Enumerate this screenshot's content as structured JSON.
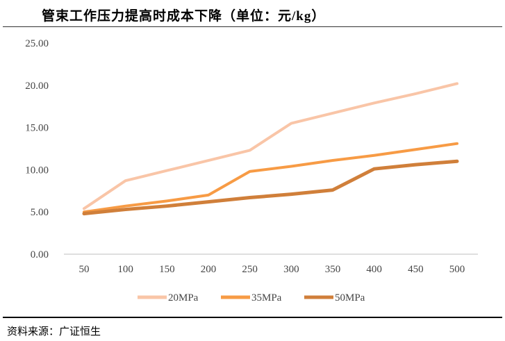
{
  "chart_data": {
    "type": "line",
    "title": "管束工作压力提高时成本下降（单位：元/kg）",
    "x": [
      50,
      100,
      150,
      200,
      250,
      300,
      350,
      400,
      450,
      500
    ],
    "ylim": [
      0,
      25
    ],
    "yticks": [
      "0.00",
      "5.00",
      "10.00",
      "15.00",
      "20.00",
      "25.00"
    ],
    "xticks": [
      "50",
      "100",
      "150",
      "200",
      "250",
      "300",
      "350",
      "400",
      "450",
      "500"
    ],
    "grid": false,
    "legend": "bottom",
    "series": [
      {
        "name": "20MPa",
        "color": "#F9C5A7",
        "values": [
          5.4,
          8.7,
          9.9,
          11.1,
          12.3,
          15.5,
          16.7,
          17.9,
          19.0,
          20.2
        ]
      },
      {
        "name": "35MPa",
        "color": "#F79B45",
        "values": [
          5.0,
          5.7,
          6.3,
          7.0,
          9.8,
          10.4,
          11.1,
          11.7,
          12.4,
          13.1
        ]
      },
      {
        "name": "50MPa",
        "color": "#D07F3A",
        "values": [
          4.8,
          5.3,
          5.7,
          6.2,
          6.7,
          7.1,
          7.6,
          10.1,
          10.6,
          11.0
        ]
      }
    ]
  },
  "source": "资料来源：广证恒生"
}
